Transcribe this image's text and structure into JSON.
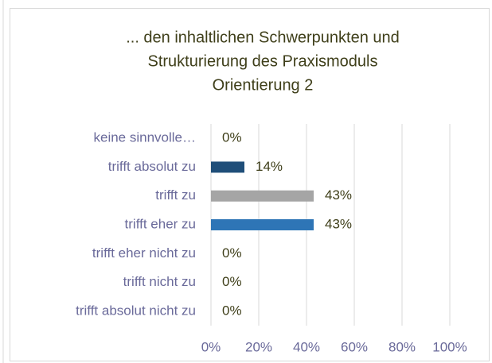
{
  "chart_data": {
    "type": "barh",
    "title": [
      "... den inhaltlichen Schwerpunkten und",
      "Strukturierung des Praxismoduls",
      "Orientierung 2"
    ],
    "categories": [
      "keine sinnvolle…",
      "trifft absolut zu",
      "trifft zu",
      "trifft eher zu",
      "trifft eher nicht zu",
      "trifft nicht zu",
      "trifft absolut nicht zu"
    ],
    "values": [
      0,
      14,
      43,
      43,
      0,
      0,
      0
    ],
    "value_labels": [
      "0%",
      "14%",
      "43%",
      "43%",
      "0%",
      "0%",
      "0%"
    ],
    "colors": [
      null,
      "#1f4e79",
      "#a5a5a5",
      "#2e75b6",
      null,
      null,
      null
    ],
    "xlim": [
      0,
      100
    ],
    "xticks": [
      {
        "value": 0,
        "label": "0%"
      },
      {
        "value": 20,
        "label": "20%"
      },
      {
        "value": 40,
        "label": "40%"
      },
      {
        "value": 60,
        "label": "60%"
      },
      {
        "value": 80,
        "label": "80%"
      },
      {
        "value": 100,
        "label": "100%"
      }
    ],
    "grid": true
  }
}
